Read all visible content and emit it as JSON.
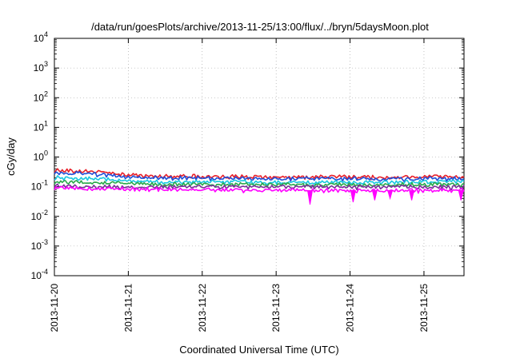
{
  "chart_data": {
    "type": "line",
    "title": "/data/run/goesPlots/archive/2013-11-25/13:00/flux/../bryn/5daysMoon.plot",
    "xlabel": "Coordinated Universal Time (UTC)",
    "ylabel": "cGy/day",
    "yscale": "log",
    "ylim": [
      0.0001,
      10000
    ],
    "xlim": [
      "2013-11-20",
      "2013-11-25 13:00"
    ],
    "grid": true,
    "y_ticks": [
      {
        "base": "10",
        "exp": "-4"
      },
      {
        "base": "10",
        "exp": "-3"
      },
      {
        "base": "10",
        "exp": "-2"
      },
      {
        "base": "10",
        "exp": "-1"
      },
      {
        "base": "10",
        "exp": "0"
      },
      {
        "base": "10",
        "exp": "1"
      },
      {
        "base": "10",
        "exp": "2"
      },
      {
        "base": "10",
        "exp": "3"
      },
      {
        "base": "10",
        "exp": "4"
      }
    ],
    "x_ticks": [
      "2013-11-20",
      "2013-11-21",
      "2013-11-22",
      "2013-11-23",
      "2013-11-24",
      "2013-11-25"
    ],
    "x": [
      "2013-11-20 00:00",
      "2013-11-20 12:00",
      "2013-11-21 00:00",
      "2013-11-21 12:00",
      "2013-11-22 00:00",
      "2013-11-22 12:00",
      "2013-11-23 00:00",
      "2013-11-23 12:00",
      "2013-11-24 00:00",
      "2013-11-24 12:00",
      "2013-11-25 00:00",
      "2013-11-25 12:00"
    ],
    "series": [
      {
        "color": "#e8202a",
        "values": [
          0.36,
          0.33,
          0.25,
          0.23,
          0.23,
          0.22,
          0.21,
          0.22,
          0.22,
          0.21,
          0.22,
          0.22
        ]
      },
      {
        "color": "#1f4fd8",
        "values": [
          0.3,
          0.28,
          0.22,
          0.2,
          0.2,
          0.19,
          0.19,
          0.19,
          0.19,
          0.18,
          0.19,
          0.19
        ]
      },
      {
        "color": "#19c8e0",
        "values": [
          0.21,
          0.19,
          0.16,
          0.15,
          0.15,
          0.15,
          0.14,
          0.14,
          0.14,
          0.14,
          0.15,
          0.15
        ]
      },
      {
        "color": "#2aa84a",
        "values": [
          0.15,
          0.14,
          0.13,
          0.12,
          0.12,
          0.12,
          0.12,
          0.12,
          0.12,
          0.12,
          0.12,
          0.12
        ]
      },
      {
        "color": "#7a2f9a",
        "values": [
          0.11,
          0.1,
          0.1,
          0.1,
          0.1,
          0.1,
          0.1,
          0.1,
          0.1,
          0.1,
          0.1,
          0.1
        ]
      },
      {
        "color": "#ff00ff",
        "values": [
          0.09,
          0.088,
          0.085,
          0.082,
          0.082,
          0.08,
          0.079,
          0.078,
          0.076,
          0.075,
          0.077,
          0.076
        ]
      }
    ],
    "spikes": [
      {
        "x": "2013-11-23 11:00",
        "y": 0.025
      },
      {
        "x": "2013-11-24 01:00",
        "y": 0.03
      },
      {
        "x": "2013-11-24 08:00",
        "y": 0.035
      },
      {
        "x": "2013-11-24 13:00",
        "y": 0.04
      },
      {
        "x": "2013-11-24 20:00",
        "y": 0.035
      },
      {
        "x": "2013-11-25 12:00",
        "y": 0.035
      }
    ]
  }
}
